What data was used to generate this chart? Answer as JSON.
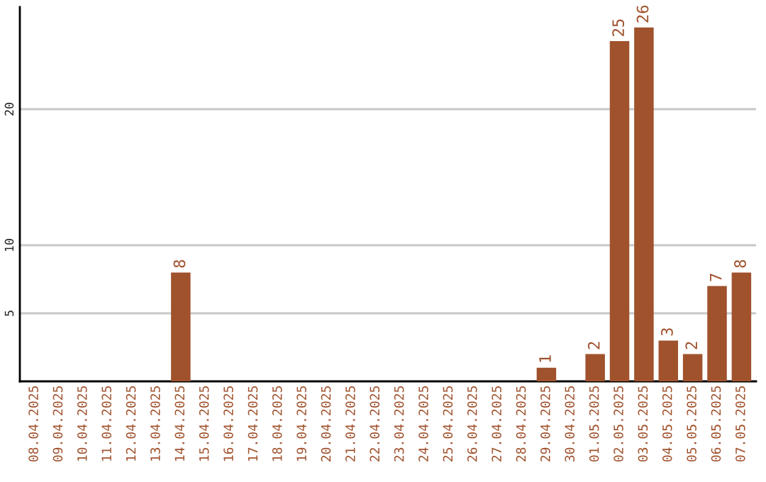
{
  "chart_data": {
    "type": "bar",
    "categories": [
      "08.04.2025",
      "09.04.2025",
      "10.04.2025",
      "11.04.2025",
      "12.04.2025",
      "13.04.2025",
      "14.04.2025",
      "15.04.2025",
      "16.04.2025",
      "17.04.2025",
      "18.04.2025",
      "19.04.2025",
      "20.04.2025",
      "21.04.2025",
      "22.04.2025",
      "23.04.2025",
      "24.04.2025",
      "25.04.2025",
      "26.04.2025",
      "27.04.2025",
      "28.04.2025",
      "29.04.2025",
      "30.04.2025",
      "01.05.2025",
      "02.05.2025",
      "03.05.2025",
      "04.05.2025",
      "05.05.2025",
      "06.05.2025",
      "07.05.2025"
    ],
    "values": [
      0,
      0,
      0,
      0,
      0,
      0,
      8,
      0,
      0,
      0,
      0,
      0,
      0,
      0,
      0,
      0,
      0,
      0,
      0,
      0,
      0,
      1,
      0,
      2,
      25,
      26,
      3,
      2,
      7,
      8
    ],
    "value_labels": [
      null,
      null,
      null,
      null,
      null,
      null,
      "8",
      null,
      null,
      null,
      null,
      null,
      null,
      null,
      null,
      null,
      null,
      null,
      null,
      null,
      null,
      "1",
      null,
      "2",
      "25",
      "26",
      "3",
      "2",
      "7",
      "8"
    ],
    "color": "#a0522d",
    "ylim": [
      0,
      27.5
    ],
    "yticks": [
      5,
      10,
      20
    ],
    "grid": "y"
  }
}
